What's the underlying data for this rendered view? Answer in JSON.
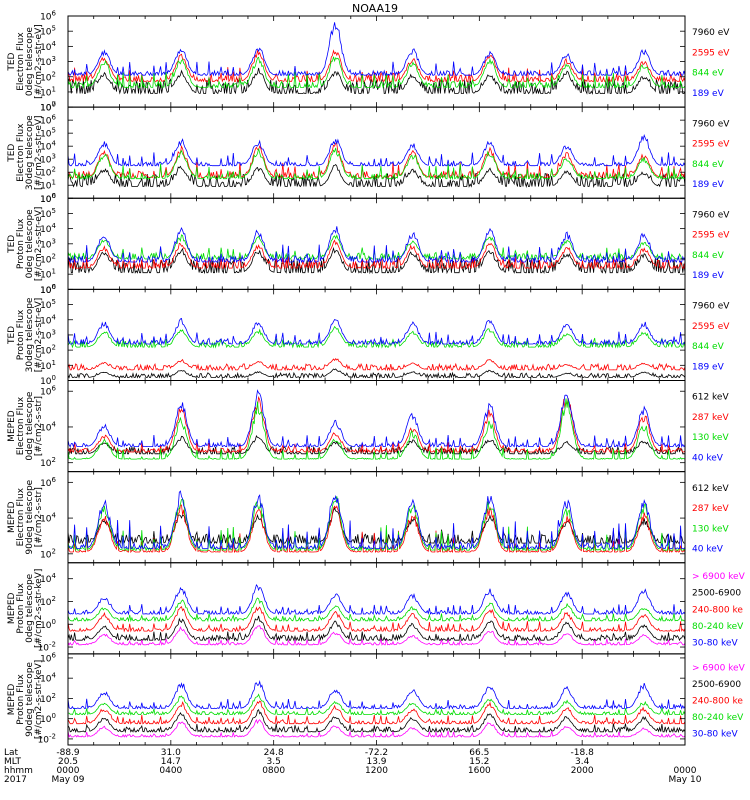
{
  "chart_data": {
    "type": "line",
    "title": "NOAA19",
    "x_range_hours": [
      0,
      24
    ],
    "panels": [
      {
        "ylabel": [
          "TED",
          "Electron Flux",
          "0deg telescope",
          "[#/cm2-s-str-eV]"
        ],
        "yticks": [
          {
            "exp": 0
          },
          {
            "exp": 1
          },
          {
            "exp": 2
          },
          {
            "exp": 3
          },
          {
            "exp": 4
          },
          {
            "exp": 5
          },
          {
            "exp": 6
          }
        ],
        "ylog": [
          0,
          6
        ],
        "series": [
          {
            "name": "7960 eV",
            "color": "#000000",
            "base": 0.9,
            "noise": 1.0,
            "peaks": [
              2.3,
              2.4,
              2.6,
              2.5,
              2.2,
              2.3,
              2.4,
              2.1
            ]
          },
          {
            "name": "2595 eV",
            "color": "#ff0000",
            "base": 1.7,
            "noise": 0.5,
            "peaks": [
              3.4,
              3.6,
              3.8,
              3.9,
              3.3,
              3.6,
              3.2,
              3.1
            ]
          },
          {
            "name": "844 eV",
            "color": "#00dd00",
            "base": 1.3,
            "noise": 0.4,
            "peaks": [
              3.2,
              3.3,
              3.4,
              3.6,
              3.1,
              3.3,
              3.0,
              2.9
            ]
          },
          {
            "name": "189 eV",
            "color": "#0000ff",
            "base": 2.1,
            "noise": 0.3,
            "peaks": [
              3.8,
              4.0,
              4.1,
              5.8,
              3.9,
              3.7,
              3.6,
              3.9
            ]
          }
        ]
      },
      {
        "ylabel": [
          "TED",
          "Electron Flux",
          "30deg telescope",
          "[#/cm2-s-str-eV]"
        ],
        "yticks": [
          {
            "exp": 0
          },
          {
            "exp": 1
          },
          {
            "exp": 2
          },
          {
            "exp": 3
          },
          {
            "exp": 4
          },
          {
            "exp": 5
          },
          {
            "exp": 6
          },
          {
            "exp": 7
          }
        ],
        "ylog": [
          0,
          7
        ],
        "series": [
          {
            "name": "7960 eV",
            "color": "#000000",
            "base": 0.9,
            "noise": 1.0,
            "peaks": [
              2.4,
              2.6,
              2.5,
              2.6,
              2.3,
              2.4,
              2.2,
              2.1
            ]
          },
          {
            "name": "2595 eV",
            "color": "#ff0000",
            "base": 1.6,
            "noise": 0.5,
            "peaks": [
              3.8,
              4.0,
              4.1,
              4.3,
              3.7,
              3.9,
              3.6,
              3.5
            ]
          },
          {
            "name": "844 eV",
            "color": "#00dd00",
            "base": 1.5,
            "noise": 0.4,
            "peaks": [
              3.6,
              3.8,
              3.9,
              4.0,
              3.5,
              3.7,
              3.3,
              3.2
            ]
          },
          {
            "name": "189 eV",
            "color": "#0000ff",
            "base": 2.5,
            "noise": 0.3,
            "peaks": [
              4.4,
              4.6,
              4.5,
              4.7,
              4.3,
              4.5,
              4.2,
              5.0
            ]
          }
        ]
      },
      {
        "ylabel": [
          "TED",
          "Proton Flux",
          "0deg telescope",
          "[#/cm2-s-str-eV]"
        ],
        "yticks": [
          {
            "exp": 0
          },
          {
            "exp": 1
          },
          {
            "exp": 2
          },
          {
            "exp": 3
          },
          {
            "exp": 4
          },
          {
            "exp": 5
          },
          {
            "exp": 6
          }
        ],
        "ylog": [
          0,
          6
        ],
        "series": [
          {
            "name": "7960 eV",
            "color": "#000000",
            "base": 1.1,
            "noise": 1.0,
            "peaks": [
              2.6,
              2.8,
              2.7,
              2.8,
              2.6,
              2.7,
              2.5,
              2.4
            ]
          },
          {
            "name": "2595 eV",
            "color": "#ff0000",
            "base": 1.4,
            "noise": 0.6,
            "peaks": [
              2.9,
              3.2,
              3.1,
              3.3,
              3.0,
              3.2,
              2.9,
              2.8
            ]
          },
          {
            "name": "844 eV",
            "color": "#00dd00",
            "base": 2.0,
            "noise": 0.4,
            "peaks": [
              3.4,
              3.6,
              3.5,
              3.7,
              3.4,
              3.6,
              3.3,
              3.2
            ]
          },
          {
            "name": "189 eV",
            "color": "#0000ff",
            "base": 1.8,
            "noise": 0.4,
            "peaks": [
              3.9,
              4.2,
              4.0,
              4.3,
              3.9,
              4.1,
              3.8,
              3.9
            ]
          }
        ]
      },
      {
        "ylabel": [
          "TED",
          "Proton Flux",
          "30deg telescope",
          "[#/cm2-s-str-eV]"
        ],
        "yticks": [
          {
            "exp": 0
          },
          {
            "exp": 1
          },
          {
            "exp": 2
          },
          {
            "exp": 3
          },
          {
            "exp": 4
          },
          {
            "exp": 5
          },
          {
            "exp": 6
          }
        ],
        "ylog": [
          0,
          6
        ],
        "series": [
          {
            "name": "7960 eV",
            "color": "#000000",
            "base": 0.2,
            "noise": 0.3,
            "peaks": [
              0.6,
              0.7,
              0.6,
              0.8,
              0.6,
              0.7,
              0.5,
              0.6
            ]
          },
          {
            "name": "2595 eV",
            "color": "#ff0000",
            "base": 0.7,
            "noise": 0.4,
            "peaks": [
              1.2,
              1.4,
              1.3,
              1.5,
              1.2,
              1.4,
              1.1,
              1.2
            ]
          },
          {
            "name": "844 eV",
            "color": "#00dd00",
            "base": 2.2,
            "noise": 0.4,
            "peaks": [
              3.3,
              3.5,
              3.4,
              3.6,
              3.3,
              3.5,
              3.2,
              3.3
            ]
          },
          {
            "name": "189 eV",
            "color": "#0000ff",
            "base": 2.4,
            "noise": 0.3,
            "peaks": [
              3.9,
              4.1,
              4.0,
              4.2,
              3.9,
              4.1,
              3.8,
              3.9
            ]
          }
        ]
      },
      {
        "ylabel": [
          "MEPED",
          "Electron Flux",
          "0deg telescope",
          "[#/cm2-s-str]"
        ],
        "yticks": [
          {
            "exp": 2
          },
          {
            "exp": 4
          },
          {
            "exp": 6
          }
        ],
        "ylog": [
          1.5,
          6.6
        ],
        "series": [
          {
            "name": "612 keV",
            "color": "#000000",
            "base": 2.5,
            "noise": 0.4,
            "peaks": [
              3.2,
              3.5,
              3.6,
              3.2,
              3.3,
              3.4,
              3.2,
              3.3
            ]
          },
          {
            "name": "287 keV",
            "color": "#ff0000",
            "base": 2.6,
            "noise": 0.2,
            "peaks": [
              3.6,
              5.2,
              5.9,
              3.8,
              4.1,
              5.0,
              6.0,
              4.8
            ]
          },
          {
            "name": "130 keV",
            "color": "#00dd00",
            "base": 2.2,
            "noise": 0.05,
            "peaks": [
              3.4,
              4.6,
              5.5,
              3.5,
              3.8,
              4.4,
              5.7,
              4.3
            ]
          },
          {
            "name": "40 keV",
            "color": "#0000ff",
            "base": 2.9,
            "noise": 0.2,
            "peaks": [
              4.2,
              5.6,
              6.3,
              4.4,
              4.8,
              5.4,
              6.2,
              5.2
            ]
          }
        ]
      },
      {
        "ylabel": [
          "MEPED",
          "Electron Flux",
          "90deg telescope",
          "[#/cm2-s-str]"
        ],
        "yticks": [
          {
            "exp": 2
          },
          {
            "exp": 4
          },
          {
            "exp": 6
          }
        ],
        "ylog": [
          1.5,
          6.6
        ],
        "series": [
          {
            "name": "612 keV",
            "color": "#000000",
            "base": 2.6,
            "noise": 0.5,
            "peaks": [
              4.0,
              4.4,
              4.2,
              4.6,
              4.1,
              4.3,
              3.9,
              4.0
            ]
          },
          {
            "name": "287 keV",
            "color": "#ff0000",
            "base": 2.1,
            "noise": 0.1,
            "peaks": [
              4.3,
              4.8,
              4.6,
              4.9,
              4.4,
              4.7,
              4.2,
              4.4
            ]
          },
          {
            "name": "130 keV",
            "color": "#00dd00",
            "base": 2.2,
            "noise": 0.2,
            "peaks": [
              4.8,
              5.3,
              5.1,
              5.4,
              4.9,
              5.2,
              4.7,
              4.9
            ]
          },
          {
            "name": "40 keV",
            "color": "#0000ff",
            "base": 2.3,
            "noise": 0.3,
            "peaks": [
              5.2,
              5.7,
              5.5,
              5.8,
              5.3,
              5.6,
              5.1,
              5.3
            ]
          }
        ]
      },
      {
        "ylabel": [
          "MEPED",
          "Proton Flux",
          "0deg telescope",
          "[#/cm2-s-str-keV]"
        ],
        "yticks": [
          {
            "exp": -2
          },
          {
            "exp": 0
          },
          {
            "exp": 2
          },
          {
            "exp": 4
          }
        ],
        "ylog": [
          -2.6,
          5.4
        ],
        "series": [
          {
            "name": "> 6900 keV",
            "color": "#ff00ff",
            "base": -1.8,
            "noise": 0.2,
            "peaks": [
              -0.8,
              -0.2,
              0.1,
              -0.6,
              -0.9,
              -0.4,
              -0.7,
              -0.9
            ]
          },
          {
            "name": "2500-6900",
            "color": "#000000",
            "base": -1.4,
            "noise": 0.5,
            "peaks": [
              0.0,
              0.6,
              0.8,
              0.3,
              0.1,
              0.5,
              0.2,
              0.1
            ]
          },
          {
            "name": "240-800 ke",
            "color": "#ff0000",
            "base": -0.6,
            "noise": 0.3,
            "peaks": [
              1.0,
              1.6,
              1.8,
              1.2,
              1.0,
              1.5,
              1.1,
              1.0
            ]
          },
          {
            "name": "80-240 keV",
            "color": "#00dd00",
            "base": 0.3,
            "noise": 0.3,
            "peaks": [
              1.5,
              2.2,
              2.4,
              1.7,
              1.6,
              2.0,
              1.8,
              1.6
            ]
          },
          {
            "name": "30-80 keV",
            "color": "#0000ff",
            "base": 0.9,
            "noise": 0.3,
            "peaks": [
              2.5,
              3.4,
              3.6,
              2.8,
              2.7,
              3.2,
              2.9,
              3.3
            ]
          }
        ]
      },
      {
        "ylabel": [
          "MEPED",
          "Proton Flux",
          "90deg telescope",
          "[#/cm2-s-str-keV]"
        ],
        "yticks": [
          {
            "exp": -2
          },
          {
            "exp": 0
          },
          {
            "exp": 2
          },
          {
            "exp": 4
          },
          {
            "exp": 6
          }
        ],
        "ylog": [
          -2.6,
          6.4
        ],
        "series": [
          {
            "name": "> 6900 keV",
            "color": "#ff00ff",
            "base": -1.8,
            "noise": 0.2,
            "peaks": [
              -0.7,
              -0.2,
              0.0,
              -0.6,
              -0.8,
              -0.3,
              -0.6,
              -0.9
            ]
          },
          {
            "name": "2500-6900",
            "color": "#000000",
            "base": -1.3,
            "noise": 0.5,
            "peaks": [
              0.2,
              0.7,
              0.9,
              0.4,
              0.2,
              0.6,
              0.3,
              0.2
            ]
          },
          {
            "name": "240-800 ke",
            "color": "#ff0000",
            "base": -0.5,
            "noise": 0.3,
            "peaks": [
              1.1,
              1.7,
              1.9,
              1.3,
              1.1,
              1.6,
              1.2,
              1.1
            ]
          },
          {
            "name": "80-240 keV",
            "color": "#00dd00",
            "base": 0.4,
            "noise": 0.3,
            "peaks": [
              1.6,
              2.3,
              2.5,
              1.8,
              1.7,
              2.1,
              1.9,
              1.7
            ]
          },
          {
            "name": "30-80 keV",
            "color": "#0000ff",
            "base": 1.0,
            "noise": 0.3,
            "peaks": [
              2.8,
              3.7,
              3.9,
              3.1,
              3.0,
              3.5,
              3.2,
              3.6
            ]
          }
        ]
      }
    ],
    "xaxis": {
      "row_labels": [
        "Lat",
        "MLT",
        "hhmm",
        "2017"
      ],
      "ticks": [
        {
          "hour": 0,
          "lat": "-88.9",
          "mlt": "20.5",
          "hhmm": "0000",
          "date": "May 09"
        },
        {
          "hour": 4,
          "lat": "31.0",
          "mlt": "14.7",
          "hhmm": "0400",
          "date": ""
        },
        {
          "hour": 8,
          "lat": "24.8",
          "mlt": "3.5",
          "hhmm": "0800",
          "date": ""
        },
        {
          "hour": 12,
          "lat": "-72.2",
          "mlt": "13.9",
          "hhmm": "1200",
          "date": ""
        },
        {
          "hour": 16,
          "lat": "66.5",
          "mlt": "15.2",
          "hhmm": "1600",
          "date": ""
        },
        {
          "hour": 20,
          "lat": "-18.8",
          "mlt": "3.4",
          "hhmm": "2000",
          "date": ""
        },
        {
          "hour": 24,
          "lat": "",
          "mlt": "",
          "hhmm": "0000",
          "date": "May 10"
        }
      ]
    }
  }
}
